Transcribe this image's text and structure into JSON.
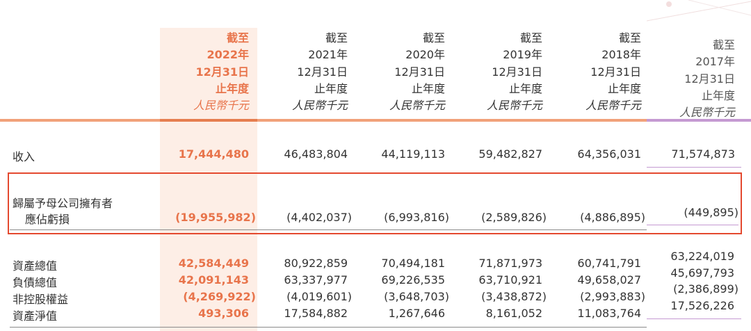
{
  "headers": [
    {
      "line1": "截至",
      "line2": "2022年",
      "line3": "12月31日",
      "line4": "止年度",
      "unit": "人民幣千元"
    },
    {
      "line1": "截至",
      "line2": "2021年",
      "line3": "12月31日",
      "line4": "止年度",
      "unit": "人民幣千元"
    },
    {
      "line1": "截至",
      "line2": "2020年",
      "line3": "12月31日",
      "line4": "止年度",
      "unit": "人民幣千元"
    },
    {
      "line1": "截至",
      "line2": "2019年",
      "line3": "12月31日",
      "line4": "止年度",
      "unit": "人民幣千元"
    },
    {
      "line1": "截至",
      "line2": "2018年",
      "line3": "12月31日",
      "line4": "止年度",
      "unit": "人民幣千元"
    },
    {
      "line1": "截至",
      "line2": "2017年",
      "line3": "12月31日",
      "line4": "止年度",
      "unit": "人民幣千元"
    }
  ],
  "rows": {
    "revenue": {
      "label": "收入",
      "values": [
        "17,444,480",
        "46,483,804",
        "44,119,113",
        "59,482,827",
        "64,356,031",
        "71,574,873"
      ]
    },
    "impairment": {
      "label_line1": "歸屬予母公司擁有者",
      "label_line2": "應佔虧損",
      "values": [
        "(19,955,982)",
        "(4,402,037)",
        "(6,993,816)",
        "(2,589,826)",
        "(4,886,895)",
        "(449,895)"
      ]
    },
    "total_assets": {
      "label": "資產總值",
      "values": [
        "42,584,449",
        "80,922,859",
        "70,494,181",
        "71,871,973",
        "60,741,791",
        "63,224,019"
      ]
    },
    "total_liabilities": {
      "label": "負債總值",
      "values": [
        "42,091,143",
        "63,337,977",
        "69,226,535",
        "63,710,921",
        "49,658,027",
        "45,697,793"
      ]
    },
    "non_controlling": {
      "label": "非控股權益",
      "values": [
        "(4,269,922)",
        "(4,019,601)",
        "(3,648,703)",
        "(3,438,872)",
        "(2,993,883)",
        "(2,386,899)"
      ]
    },
    "net_assets": {
      "label": "資產淨值",
      "values": [
        "493,306",
        "17,584,882",
        "1,267,646",
        "8,161,052",
        "11,083,764",
        "17,526,226"
      ]
    }
  },
  "colors": {
    "accent": "#e8744b",
    "highlight_bg": "#fdeee6",
    "orange_rule": "#f1a17a",
    "purple_rule": "#c59ad2",
    "callout_border": "#e4492f"
  }
}
